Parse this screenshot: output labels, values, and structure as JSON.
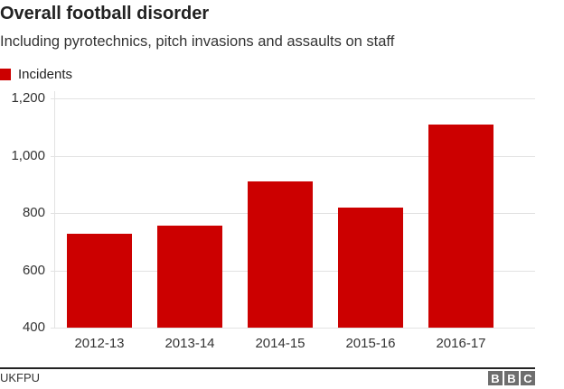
{
  "header": {
    "title": "Overall football disorder",
    "subtitle": "Including pyrotechnics, pitch invasions and assaults on staff"
  },
  "legend": {
    "label": "Incidents",
    "color": "#cc0000"
  },
  "footer": {
    "source": "UKFPU",
    "logo_letters": [
      "B",
      "B",
      "C"
    ],
    "logo_color": "#6e6e6e"
  },
  "chart_data": {
    "type": "bar",
    "title": "Overall football disorder",
    "subtitle": "Including pyrotechnics, pitch invasions and assaults on staff",
    "categories": [
      "2012-13",
      "2013-14",
      "2014-15",
      "2015-16",
      "2016-17"
    ],
    "series": [
      {
        "name": "Incidents",
        "color": "#cc0000",
        "values": [
          728,
          756,
          910,
          819,
          1110
        ]
      }
    ],
    "xlabel": "",
    "ylabel": "",
    "ylim": [
      400,
      1200
    ],
    "yticks": [
      400,
      600,
      800,
      1000,
      1200
    ],
    "ytick_labels": [
      "400",
      "600",
      "800",
      "1,000",
      "1,200"
    ],
    "grid": true,
    "legend_position": "top-left",
    "source": "UKFPU"
  }
}
